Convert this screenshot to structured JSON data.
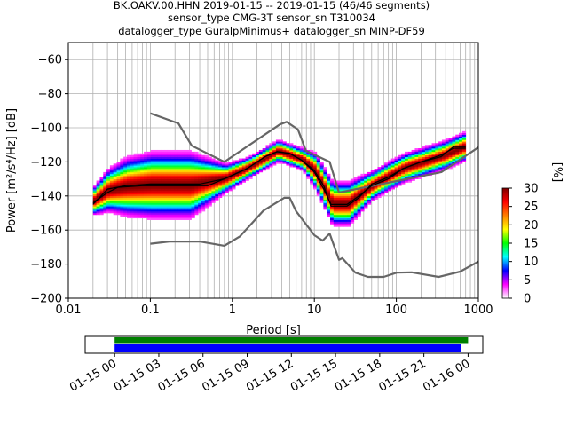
{
  "chart_data": {
    "type": "heatmap",
    "title_lines": [
      "BK.OAKV.00.HHN   2019-01-15 -- 2019-01-15  (46/46 segments)",
      "sensor_type CMG-3T sensor_sn T310034",
      "datalogger_type GuralpMinimus+ datalogger_sn MINP-DF59"
    ],
    "xlabel": "Period [s]",
    "ylabel": "Power [m²/s⁴/Hz] [dB]",
    "x_scale": "log",
    "xlim": [
      0.01,
      1000
    ],
    "ylim": [
      -200,
      -50
    ],
    "x_ticks": [
      {
        "v": 0.01,
        "label": "0.01"
      },
      {
        "v": 0.1,
        "label": "0.1"
      },
      {
        "v": 1,
        "label": "1"
      },
      {
        "v": 10,
        "label": "10"
      },
      {
        "v": 100,
        "label": "100"
      },
      {
        "v": 1000,
        "label": "1000"
      }
    ],
    "y_ticks": [
      {
        "v": -60,
        "label": "−60"
      },
      {
        "v": -80,
        "label": "−80"
      },
      {
        "v": -100,
        "label": "−100"
      },
      {
        "v": -120,
        "label": "−120"
      },
      {
        "v": -140,
        "label": "−140"
      },
      {
        "v": -160,
        "label": "−160"
      },
      {
        "v": -180,
        "label": "−180"
      },
      {
        "v": -200,
        "label": "−200"
      }
    ],
    "grid": true,
    "colorbar": {
      "label": "[%]",
      "range": [
        0,
        30
      ],
      "ticks": [
        {
          "v": 0,
          "label": "0"
        },
        {
          "v": 5,
          "label": "5"
        },
        {
          "v": 10,
          "label": "10"
        },
        {
          "v": 15,
          "label": "15"
        },
        {
          "v": 20,
          "label": "20"
        },
        {
          "v": 25,
          "label": "25"
        },
        {
          "v": 30,
          "label": "30"
        }
      ],
      "colors": [
        "#ffffff",
        "#ff00ff",
        "#0000ff",
        "#00ffff",
        "#00ff00",
        "#ffff00",
        "#ff8000",
        "#ff0000",
        "#800000"
      ]
    },
    "series": [
      {
        "kind": "noise_model_high",
        "color": "#666666",
        "points": [
          [
            0.1,
            -91.5
          ],
          [
            0.22,
            -97.4
          ],
          [
            0.32,
            -110.5
          ],
          [
            0.8,
            -120
          ],
          [
            3.8,
            -98
          ],
          [
            4.6,
            -96.5
          ],
          [
            6.3,
            -101
          ],
          [
            7.9,
            -113.5
          ],
          [
            15.4,
            -120
          ],
          [
            20,
            -138
          ],
          [
            354,
            -126
          ],
          [
            1000,
            -111.5
          ]
        ]
      },
      {
        "kind": "noise_model_low",
        "color": "#666666",
        "points": [
          [
            0.1,
            -168
          ],
          [
            0.17,
            -166.7
          ],
          [
            0.4,
            -166.7
          ],
          [
            0.8,
            -169.2
          ],
          [
            1.24,
            -163.7
          ],
          [
            2.4,
            -148.6
          ],
          [
            4.3,
            -141.1
          ],
          [
            5.0,
            -141.1
          ],
          [
            6.0,
            -149
          ],
          [
            10,
            -163
          ],
          [
            12.6,
            -166.2
          ],
          [
            15.4,
            -162.1
          ],
          [
            20,
            -177.5
          ],
          [
            21.9,
            -176.5
          ],
          [
            31.6,
            -185
          ],
          [
            45,
            -187.5
          ],
          [
            70,
            -187.5
          ],
          [
            101,
            -185
          ],
          [
            154,
            -184.8
          ],
          [
            328,
            -187.5
          ],
          [
            600,
            -184.4
          ],
          [
            1000,
            -178.5
          ]
        ]
      },
      {
        "kind": "median",
        "color": "#000000",
        "points": [
          [
            0.02,
            -144
          ],
          [
            0.03,
            -138
          ],
          [
            0.04,
            -135
          ],
          [
            0.08,
            -134
          ],
          [
            0.15,
            -134
          ],
          [
            0.3,
            -134
          ],
          [
            0.5,
            -134
          ],
          [
            0.8,
            -130
          ],
          [
            1.5,
            -124
          ],
          [
            2.5,
            -117
          ],
          [
            3.5,
            -114
          ],
          [
            5,
            -115
          ],
          [
            7,
            -119
          ],
          [
            10,
            -126
          ],
          [
            13,
            -136
          ],
          [
            16,
            -145
          ],
          [
            25,
            -145
          ],
          [
            35,
            -140
          ],
          [
            50,
            -134
          ],
          [
            80,
            -130
          ],
          [
            120,
            -124
          ],
          [
            200,
            -120
          ],
          [
            350,
            -117
          ],
          [
            500,
            -111
          ],
          [
            700,
            -111
          ]
        ]
      },
      {
        "kind": "mode",
        "color": "#000000",
        "points": [
          [
            0.02,
            -145
          ],
          [
            0.03,
            -136
          ],
          [
            0.05,
            -134
          ],
          [
            0.1,
            -133
          ],
          [
            0.2,
            -133
          ],
          [
            0.4,
            -133
          ],
          [
            0.8,
            -130
          ],
          [
            1.5,
            -124
          ],
          [
            2.5,
            -117
          ],
          [
            3.5,
            -114
          ],
          [
            5,
            -115
          ],
          [
            7,
            -119
          ],
          [
            10,
            -125
          ],
          [
            13,
            -134
          ],
          [
            16,
            -146
          ],
          [
            25,
            -146
          ],
          [
            35,
            -141
          ],
          [
            50,
            -133
          ],
          [
            80,
            -129
          ],
          [
            120,
            -124
          ],
          [
            200,
            -120
          ],
          [
            350,
            -116
          ],
          [
            500,
            -112
          ],
          [
            700,
            -112
          ]
        ]
      }
    ],
    "psd_distribution": {
      "core": {
        "description_points": [
          [
            0.02,
            -143
          ],
          [
            0.03,
            -137
          ],
          [
            0.05,
            -135
          ],
          [
            0.1,
            -134
          ],
          [
            0.3,
            -134
          ],
          [
            0.8,
            -130
          ],
          [
            1.5,
            -124
          ],
          [
            3.5,
            -114
          ],
          [
            7,
            -119
          ],
          [
            10,
            -126
          ],
          [
            16,
            -145
          ],
          [
            25,
            -145
          ],
          [
            50,
            -134
          ],
          [
            120,
            -124
          ],
          [
            350,
            -117
          ],
          [
            700,
            -111
          ]
        ],
        "spread_db": [
          4,
          6,
          8,
          9,
          9,
          4,
          3,
          3,
          3,
          5,
          6,
          6,
          4,
          4,
          4,
          4
        ]
      }
    },
    "time_axis": {
      "tick_labels": [
        "01-15 00",
        "01-15 03",
        "01-15 06",
        "01-15 09",
        "01-15 12",
        "01-15 15",
        "01-15 18",
        "01-15 21",
        "01-16 00"
      ],
      "range_hours": [
        -2,
        25
      ],
      "bars": [
        {
          "name": "data",
          "color": "#008000",
          "start_h": 0,
          "end_h": 24
        },
        {
          "name": "used",
          "color": "#0000ff",
          "start_h": 0,
          "end_h": 23.5
        }
      ]
    }
  }
}
